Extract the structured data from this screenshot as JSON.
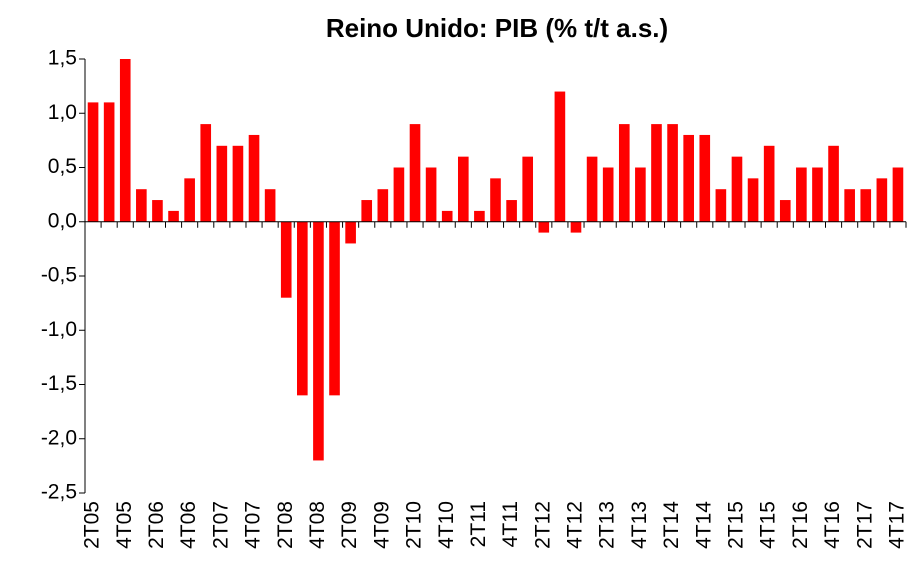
{
  "chart_data": {
    "type": "bar",
    "title": "Reino Unido: PIB (% t/t a.s.)",
    "categories": [
      "2T05",
      null,
      "4T05",
      null,
      "2T06",
      null,
      "4T06",
      null,
      "2T07",
      null,
      "4T07",
      null,
      "2T08",
      null,
      "4T08",
      null,
      "2T09",
      null,
      "4T09",
      null,
      "2T10",
      null,
      "4T10",
      null,
      "2T11",
      null,
      "4T11",
      null,
      "2T12",
      null,
      "4T12",
      null,
      "2T13",
      null,
      "4T13",
      null,
      "2T14",
      null,
      "4T14",
      null,
      "2T15",
      null,
      "4T15",
      null,
      "2T16",
      null,
      "4T16",
      null,
      "2T17",
      null,
      "4T17"
    ],
    "values": [
      1.1,
      1.1,
      1.5,
      0.3,
      0.2,
      0.1,
      0.4,
      0.9,
      0.7,
      0.7,
      0.8,
      0.3,
      -0.7,
      -1.6,
      -2.2,
      -1.6,
      -0.2,
      0.2,
      0.3,
      0.5,
      0.9,
      0.5,
      0.1,
      0.6,
      0.1,
      0.4,
      0.2,
      0.6,
      -0.1,
      1.2,
      -0.1,
      0.6,
      0.5,
      0.9,
      0.5,
      0.9,
      0.9,
      0.8,
      0.8,
      0.3,
      0.6,
      0.4,
      0.7,
      0.2,
      0.5,
      0.5,
      0.7,
      0.3,
      0.3,
      0.4,
      0.5
    ],
    "color": "#ff0000",
    "ylim": [
      -2.5,
      1.5
    ],
    "yticks": [
      {
        "value": -2.5,
        "label": "-2,5"
      },
      {
        "value": -2,
        "label": "-2,0"
      },
      {
        "value": -1.5,
        "label": "-1,5"
      },
      {
        "value": -1,
        "label": "-1,0"
      },
      {
        "value": -0.5,
        "label": "-0,5"
      },
      {
        "value": 0,
        "label": "0,0"
      },
      {
        "value": 0.5,
        "label": "0,5"
      },
      {
        "value": 1,
        "label": "1,0"
      },
      {
        "value": 1.5,
        "label": "1,5"
      }
    ],
    "grid": false
  }
}
